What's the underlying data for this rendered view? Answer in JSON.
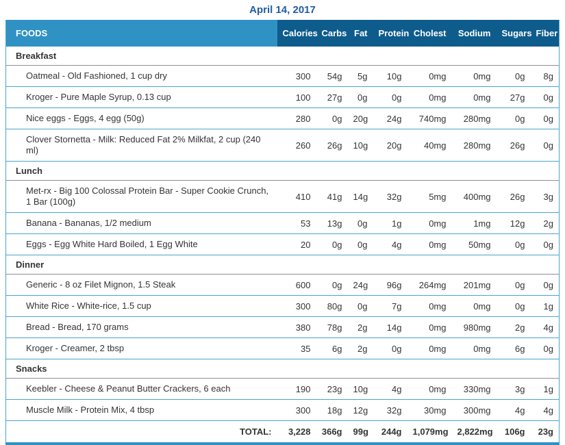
{
  "title": "April 14, 2017",
  "table": {
    "foods_header": "FOODS",
    "columns": [
      "Calories",
      "Carbs",
      "Fat",
      "Protein",
      "Cholest",
      "Sodium",
      "Sugars",
      "Fiber"
    ],
    "sections": [
      {
        "name": "Breakfast",
        "items": [
          {
            "name": "Oatmeal - Old Fashioned, 1 cup dry",
            "values": [
              "300",
              "54g",
              "5g",
              "10g",
              "0mg",
              "0mg",
              "0g",
              "8g"
            ]
          },
          {
            "name": "Kroger - Pure Maple Syrup, 0.13 cup",
            "values": [
              "100",
              "27g",
              "0g",
              "0g",
              "0mg",
              "0mg",
              "27g",
              "0g"
            ]
          },
          {
            "name": "Nice eggs - Eggs, 4 egg (50g)",
            "values": [
              "280",
              "0g",
              "20g",
              "24g",
              "740mg",
              "280mg",
              "0g",
              "0g"
            ]
          },
          {
            "name": "Clover Stornetta - Milk: Reduced Fat 2% Milkfat, 2 cup (240 ml)",
            "values": [
              "260",
              "26g",
              "10g",
              "20g",
              "40mg",
              "280mg",
              "26g",
              "0g"
            ]
          }
        ]
      },
      {
        "name": "Lunch",
        "items": [
          {
            "name": "Met-rx - Big 100 Colossal Protein Bar - Super Cookie Crunch, 1 Bar (100g)",
            "values": [
              "410",
              "41g",
              "14g",
              "32g",
              "5mg",
              "400mg",
              "26g",
              "3g"
            ]
          },
          {
            "name": "Banana - Bananas, 1/2 medium",
            "values": [
              "53",
              "13g",
              "0g",
              "1g",
              "0mg",
              "1mg",
              "12g",
              "2g"
            ]
          },
          {
            "name": "Eggs - Egg White Hard Boiled, 1 Egg White",
            "values": [
              "20",
              "0g",
              "0g",
              "4g",
              "0mg",
              "50mg",
              "0g",
              "0g"
            ]
          }
        ]
      },
      {
        "name": "Dinner",
        "items": [
          {
            "name": "Generic - 8 oz Filet Mignon, 1.5 Steak",
            "values": [
              "600",
              "0g",
              "24g",
              "96g",
              "264mg",
              "201mg",
              "0g",
              "0g"
            ]
          },
          {
            "name": "White Rice - White-rice, 1.5 cup",
            "values": [
              "300",
              "80g",
              "0g",
              "7g",
              "0mg",
              "0mg",
              "0g",
              "1g"
            ]
          },
          {
            "name": "Bread - Bread, 170 grams",
            "values": [
              "380",
              "78g",
              "2g",
              "14g",
              "0mg",
              "980mg",
              "2g",
              "4g"
            ]
          },
          {
            "name": "Kroger - Creamer, 2 tbsp",
            "values": [
              "35",
              "6g",
              "2g",
              "0g",
              "0mg",
              "0mg",
              "6g",
              "0g"
            ]
          }
        ]
      },
      {
        "name": "Snacks",
        "items": [
          {
            "name": "Keebler - Cheese & Peanut Butter Crackers, 6 each",
            "values": [
              "190",
              "23g",
              "10g",
              "4g",
              "0mg",
              "330mg",
              "3g",
              "1g"
            ]
          },
          {
            "name": "Muscle Milk - Protein Mix, 4 tbsp",
            "values": [
              "300",
              "18g",
              "12g",
              "32g",
              "30mg",
              "300mg",
              "4g",
              "4g"
            ]
          }
        ]
      }
    ],
    "total": {
      "label": "TOTAL:",
      "values": [
        "3,228",
        "366g",
        "99g",
        "244g",
        "1,079mg",
        "2,822mg",
        "106g",
        "23g"
      ]
    }
  },
  "colors": {
    "title": "#215ca0",
    "foods_header_bg": "#3092c4",
    "numeric_header_bg": "#0e5c8c",
    "row_border": "#4aa3cd",
    "section_border": "#8e8e8e",
    "thick_bottom_border": "#3092c4",
    "text": "#333333"
  }
}
